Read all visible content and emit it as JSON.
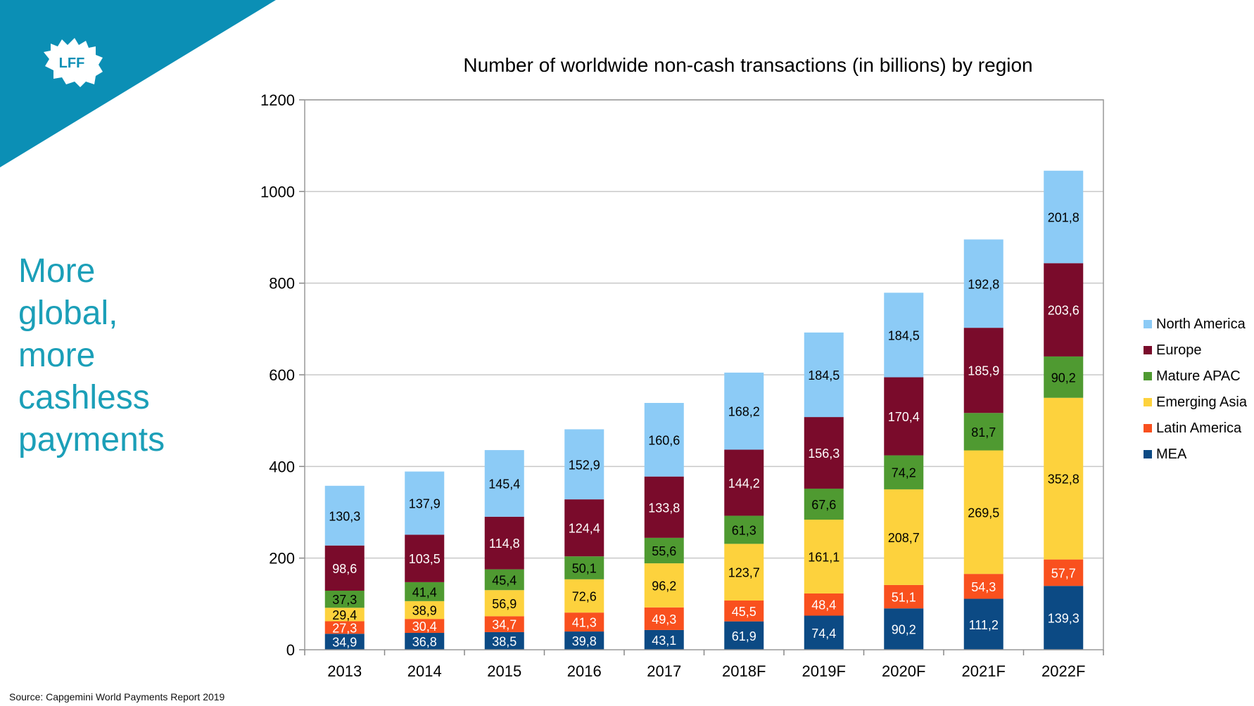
{
  "logo_text": "LFF",
  "headline": [
    "More",
    "global,",
    "more",
    "cashless",
    "payments"
  ],
  "source": "Source: Capgemini World Payments Report 2019",
  "colors": {
    "corner": "#0b8fb5",
    "headline": "#1b9fb8",
    "North America": "#8ccbf6",
    "Europe": "#7a0b2b",
    "Mature APAC": "#4f9a31",
    "Emerging Asia": "#fdd23d",
    "Latin America": "#f9501e",
    "MEA": "#0c4a84"
  },
  "chart_data": {
    "type": "bar",
    "stacked": true,
    "title": "Number of worldwide non-cash transactions (in billions) by region",
    "categories": [
      "2013",
      "2014",
      "2015",
      "2016",
      "2017",
      "2018F",
      "2019F",
      "2020F",
      "2021F",
      "2022F"
    ],
    "ylim": [
      0,
      1200
    ],
    "yticks": [
      0,
      200,
      400,
      600,
      800,
      1000,
      1200
    ],
    "grid": true,
    "legend_position": "right",
    "series": [
      {
        "name": "MEA",
        "values": [
          34.9,
          36.8,
          38.5,
          39.8,
          43.1,
          61.9,
          74.4,
          90.2,
          111.2,
          139.3
        ],
        "labels": [
          "34,9",
          "36,8",
          "38,5",
          "39,8",
          "43,1",
          "61,9",
          "74,4",
          "90,2",
          "111,2",
          "139,3"
        ]
      },
      {
        "name": "Latin America",
        "values": [
          27.3,
          30.4,
          34.7,
          41.3,
          49.3,
          45.5,
          48.4,
          51.1,
          54.3,
          57.7
        ],
        "labels": [
          "27,3",
          "30,4",
          "34,7",
          "41,3",
          "49,3",
          "45,5",
          "48,4",
          "51,1",
          "54,3",
          "57,7"
        ]
      },
      {
        "name": "Emerging Asia",
        "values": [
          29.4,
          38.9,
          56.9,
          72.6,
          96.2,
          123.7,
          161.1,
          208.7,
          269.5,
          352.8
        ],
        "labels": [
          "29,4",
          "38,9",
          "56,9",
          "72,6",
          "96,2",
          "123,7",
          "161,1",
          "208,7",
          "269,5",
          "352,8"
        ]
      },
      {
        "name": "Mature APAC",
        "values": [
          37.3,
          41.4,
          45.4,
          50.1,
          55.6,
          61.3,
          67.6,
          74.2,
          81.7,
          90.2
        ],
        "labels": [
          "37,3",
          "41,4",
          "45,4",
          "50,1",
          "55,6",
          "61,3",
          "67,6",
          "74,2",
          "81,7",
          "90,2"
        ]
      },
      {
        "name": "Europe",
        "values": [
          98.6,
          103.5,
          114.8,
          124.4,
          133.8,
          144.2,
          156.3,
          170.4,
          185.9,
          203.6
        ],
        "labels": [
          "98,6",
          "103,5",
          "114,8",
          "124,4",
          "133,8",
          "144,2",
          "156,3",
          "170,4",
          "185,9",
          "203,6"
        ]
      },
      {
        "name": "North America",
        "values": [
          130.3,
          137.9,
          145.4,
          152.9,
          160.6,
          168.2,
          184.5,
          184.5,
          192.8,
          201.8
        ],
        "labels": [
          "130,3",
          "137,9",
          "145,4",
          "152,9",
          "160,6",
          "168,2",
          "184,5",
          "184,5",
          "192,8",
          "201,8"
        ]
      }
    ],
    "legend_order": [
      "North America",
      "Europe",
      "Mature APAC",
      "Emerging Asia",
      "Latin America",
      "MEA"
    ]
  }
}
